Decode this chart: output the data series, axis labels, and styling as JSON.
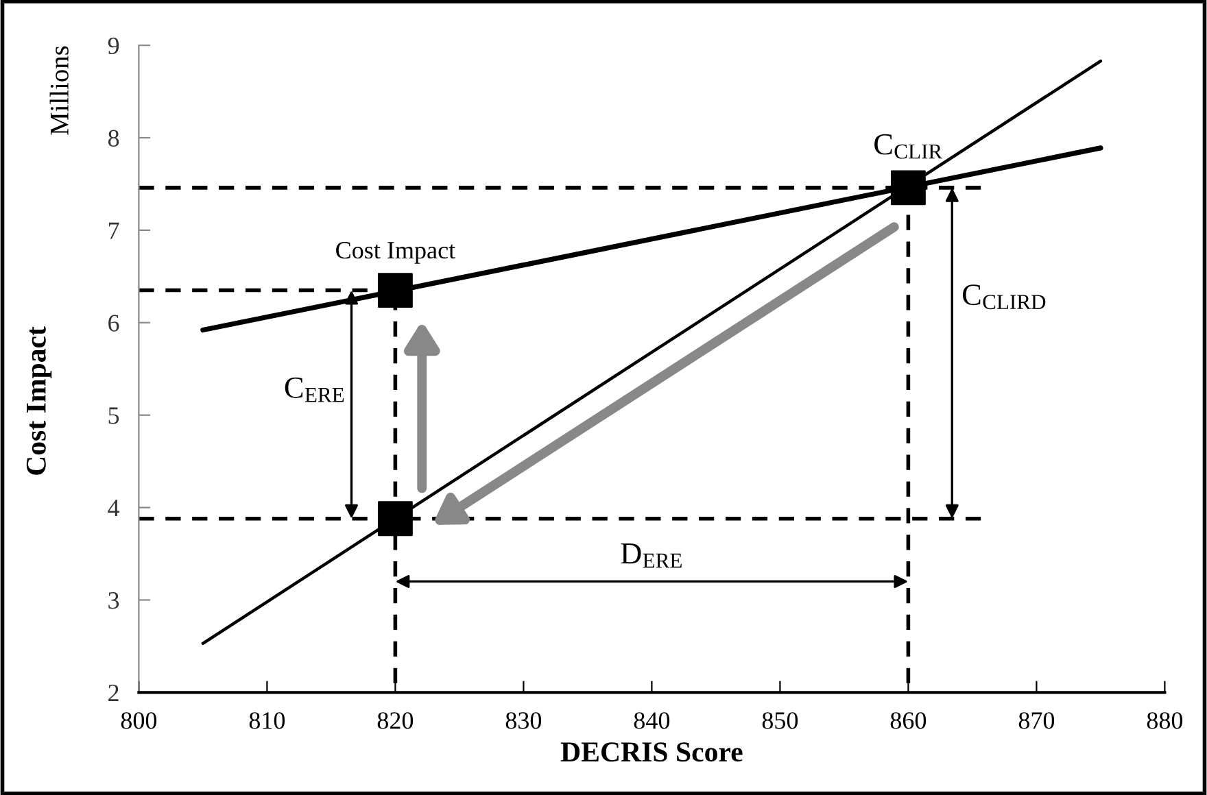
{
  "chart_data": {
    "type": "line",
    "xlabel": "DECRIS Score",
    "ylabel": "Cost Impact",
    "xlim": [
      800,
      880
    ],
    "xticks": [
      800,
      810,
      820,
      830,
      840,
      850,
      860,
      870,
      880
    ],
    "ylim": [
      2,
      9
    ],
    "yticks": [
      2,
      3,
      4,
      5,
      6,
      7,
      8,
      9
    ],
    "grid": false,
    "legend": false,
    "series": [
      {
        "color": "#000000",
        "x": [
          805,
          875
        ],
        "values": [
          5.92,
          7.89
        ],
        "line_style": "solid",
        "marker": "none"
      },
      {
        "color": "#000000",
        "x": [
          805,
          875
        ],
        "values": [
          2.53,
          8.83
        ],
        "line_style": "solid",
        "marker": "none"
      },
      {
        "color": "#000000",
        "x": [
          800,
          866
        ],
        "values": [
          7.46,
          7.46
        ],
        "line_style": "dashed",
        "marker": "none"
      },
      {
        "color": "#000000",
        "x": [
          800,
          820
        ],
        "values": [
          6.35,
          6.35
        ],
        "line_style": "dashed",
        "marker": "none"
      },
      {
        "color": "#000000",
        "x": [
          800,
          866
        ],
        "values": [
          3.88,
          3.88
        ],
        "line_style": "dashed",
        "marker": "none"
      },
      {
        "color": "#000000",
        "x": [
          820,
          820
        ],
        "values": [
          2.1,
          6.35
        ],
        "line_style": "dashed",
        "marker": "none"
      },
      {
        "color": "#000000",
        "x": [
          860,
          860
        ],
        "values": [
          2.1,
          7.46
        ],
        "line_style": "dashed",
        "marker": "none"
      },
      {
        "type": "scatter",
        "color": "#000000",
        "x": [
          820,
          820,
          860
        ],
        "values": [
          6.35,
          3.88,
          7.46
        ],
        "marker": "square"
      }
    ],
    "annotations": [
      {
        "text": "Cost Impact",
        "x": 820,
        "y": 6.35
      },
      {
        "text": "C$_{CLIR}$",
        "x": 860,
        "y": 7.46
      },
      "C$_{ERE}$",
      "C$_{CLIRD}$",
      "D$_{ERE}$",
      "Millions"
    ]
  }
}
